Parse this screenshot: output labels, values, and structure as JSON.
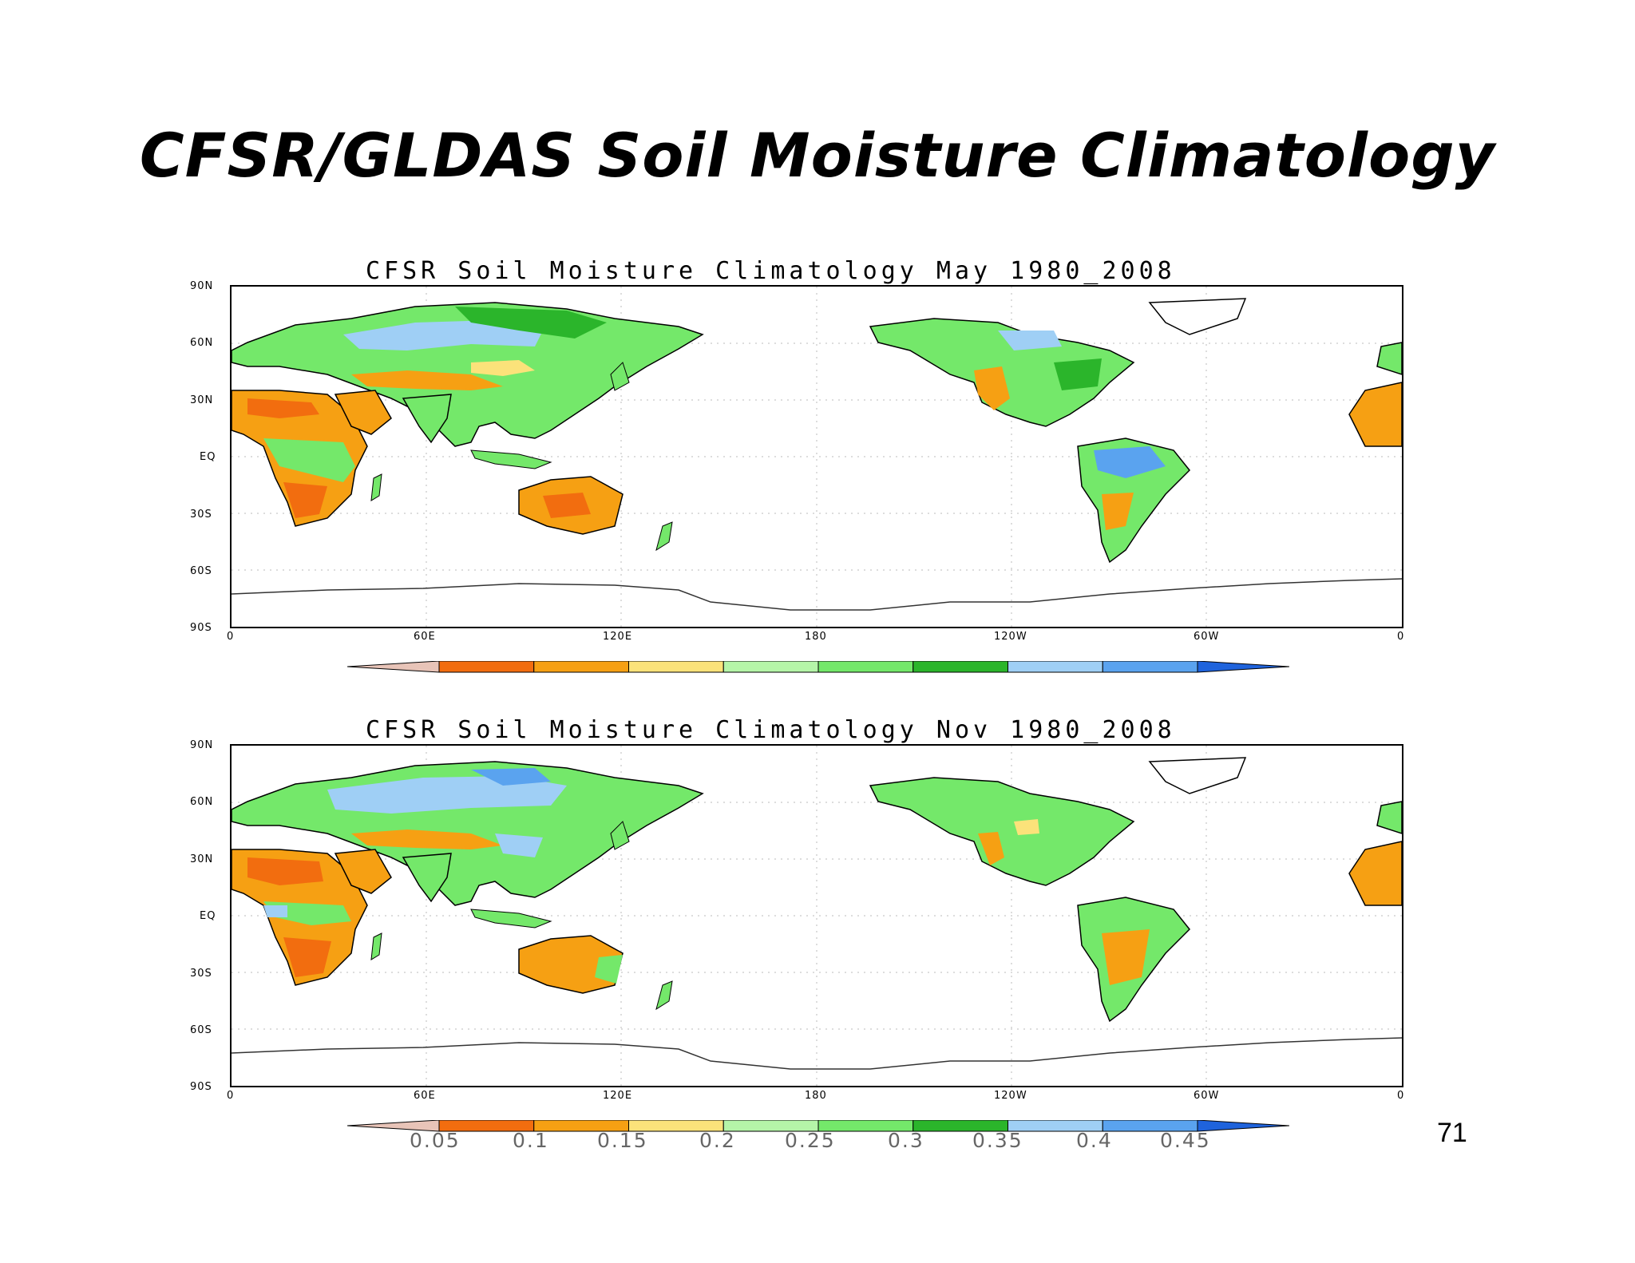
{
  "slide": {
    "title": "CFSR/GLDAS Soil Moisture Climatology",
    "page_number": "71"
  },
  "maps": [
    {
      "title": "CFSR Soil Moisture Climatology May 1980_2008"
    },
    {
      "title": "CFSR Soil Moisture Climatology Nov 1980_2008"
    }
  ],
  "axes": {
    "lat_labels": [
      "90N",
      "60N",
      "30N",
      "EQ",
      "30S",
      "60S",
      "90S"
    ],
    "lon_labels": [
      "0",
      "60E",
      "120E",
      "180",
      "120W",
      "60W",
      "0"
    ]
  },
  "colorbar": {
    "labels": [
      "0.05",
      "0.1",
      "0.15",
      "0.2",
      "0.25",
      "0.3",
      "0.35",
      "0.4",
      "0.45"
    ],
    "colors": [
      "#e8c4b8",
      "#f26d0f",
      "#f6a013",
      "#fbe27a",
      "#b5f5a8",
      "#74e86a",
      "#2bb52b",
      "#9fcff5",
      "#5aa3ef",
      "#1f63dc"
    ]
  },
  "palette": {
    "ocean": "#ffffff",
    "coast": "#000000"
  }
}
